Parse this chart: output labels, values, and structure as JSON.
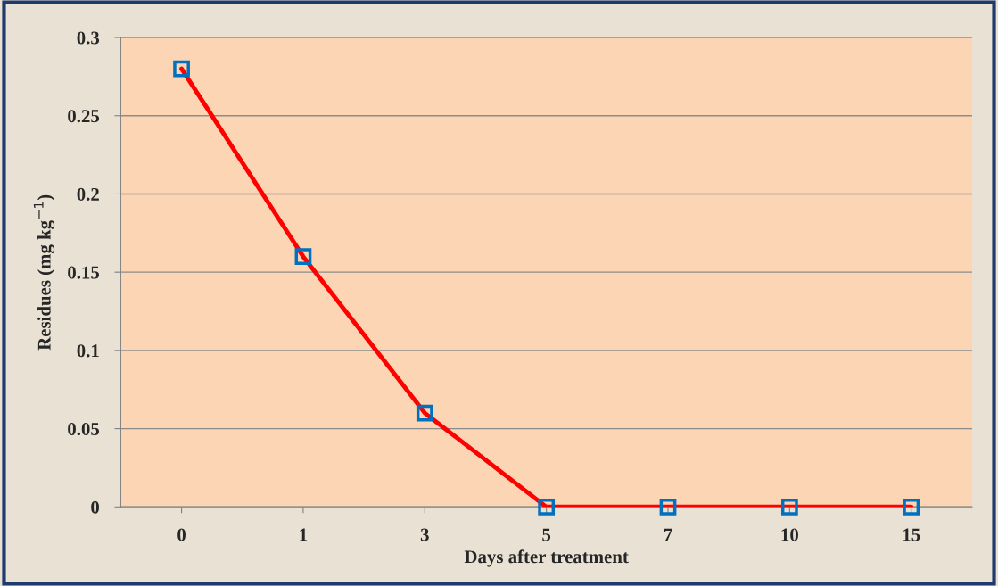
{
  "chart_data": {
    "type": "line",
    "xlabel": "Days after treatment",
    "ylabel": "Residues (mg kg$^{−1}$)",
    "categories": [
      "0",
      "1",
      "3",
      "5",
      "7",
      "10",
      "15"
    ],
    "series": [
      {
        "color": "#ff0000",
        "values": [
          0.28,
          0.16,
          0.06,
          0,
          0,
          0,
          0
        ]
      }
    ],
    "ylim": [
      0,
      0.3
    ],
    "yticks": [
      0,
      0.05,
      0.1,
      0.15,
      0.2,
      0.25,
      0.3
    ],
    "grid": "y",
    "marker": "square",
    "line_style": "solid",
    "legend": false
  }
}
